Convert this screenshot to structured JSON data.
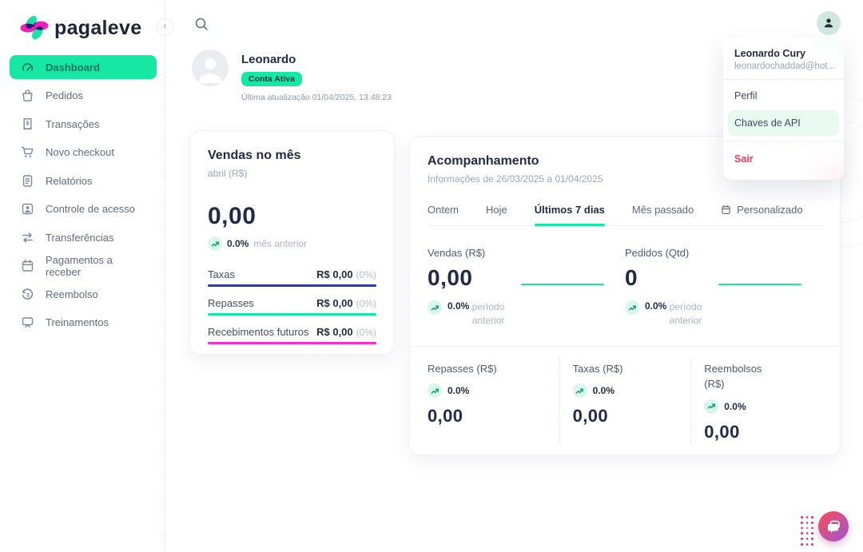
{
  "brand": {
    "name": "pagaleve"
  },
  "sidebar": {
    "items": [
      {
        "label": "Dashboard",
        "icon": "gauge",
        "active": true
      },
      {
        "label": "Pedidos",
        "icon": "bag",
        "active": false
      },
      {
        "label": "Transações",
        "icon": "receipt",
        "active": false
      },
      {
        "label": "Novo checkout",
        "icon": "cart",
        "active": false
      },
      {
        "label": "Relatórios",
        "icon": "report",
        "active": false
      },
      {
        "label": "Controle de acesso",
        "icon": "user",
        "active": false
      },
      {
        "label": "Transferências",
        "icon": "transfer",
        "active": false
      },
      {
        "label": "Pagamentos a receber",
        "icon": "calendar",
        "active": false
      },
      {
        "label": "Reembolso",
        "icon": "refund",
        "active": false
      },
      {
        "label": "Treinamentos",
        "icon": "training",
        "active": false
      }
    ]
  },
  "user_header": {
    "name": "Leonardo",
    "badge": "Conta Ativa",
    "last_update": "Última atualização 01/04/2025, 13:48:23"
  },
  "profile_menu": {
    "name": "Leonardo Cury",
    "email": "leonardochaddad@hot...",
    "perfil": "Perfil",
    "chaves": "Chaves de API",
    "sair": "Sair"
  },
  "vendas_card": {
    "title": "Vendas no mês",
    "subtitle": "abril (R$)",
    "value": "0,00",
    "trend_pct": "0.0%",
    "trend_label": "mês anterior",
    "rows": [
      {
        "label": "Taxas",
        "value": "R$ 0,00",
        "pct": "(0%)",
        "color": "#2c3d9b"
      },
      {
        "label": "Repasses",
        "value": "R$ 0,00",
        "pct": "(0%)",
        "color": "#16e7a2"
      },
      {
        "label": "Recebimentos futuros",
        "value": "R$ 0,00",
        "pct": "(0%)",
        "color": "#fa2ed0"
      }
    ]
  },
  "acompanhamento": {
    "title": "Acompanhamento",
    "subtitle": "Informações de 26/03/2025 a 01/04/2025",
    "tabs": [
      {
        "label": "Ontem",
        "active": false,
        "icon": null
      },
      {
        "label": "Hoje",
        "active": false,
        "icon": null
      },
      {
        "label": "Últimos 7 dias",
        "active": true,
        "icon": null
      },
      {
        "label": "Mês passado",
        "active": false,
        "icon": null
      },
      {
        "label": "Personalizado",
        "active": false,
        "icon": "calendar"
      }
    ],
    "primary_stats": [
      {
        "label": "Vendas (R$)",
        "value": "0,00",
        "trend_pct": "0.0%",
        "trend_label": "período anterior"
      },
      {
        "label": "Pedidos (Qtd)",
        "value": "0",
        "trend_pct": "0.0%",
        "trend_label": "período anterior"
      }
    ],
    "secondary_stats": [
      {
        "label": "Repasses (R$)",
        "trend_pct": "0.0%",
        "value": "0,00"
      },
      {
        "label": "Taxas (R$)",
        "trend_pct": "0.0%",
        "value": "0,00"
      },
      {
        "label": "Reembolsos (R$)",
        "trend_pct": "0.0%",
        "value": "0,00"
      }
    ]
  },
  "colors": {
    "accent_green": "#16e7a2",
    "line_navy": "#2c3d9b",
    "line_magenta": "#fa2ed0",
    "danger_red": "#f5365c",
    "logo_pink": "#f31fb9",
    "logo_teal": "#1fdfa7"
  }
}
